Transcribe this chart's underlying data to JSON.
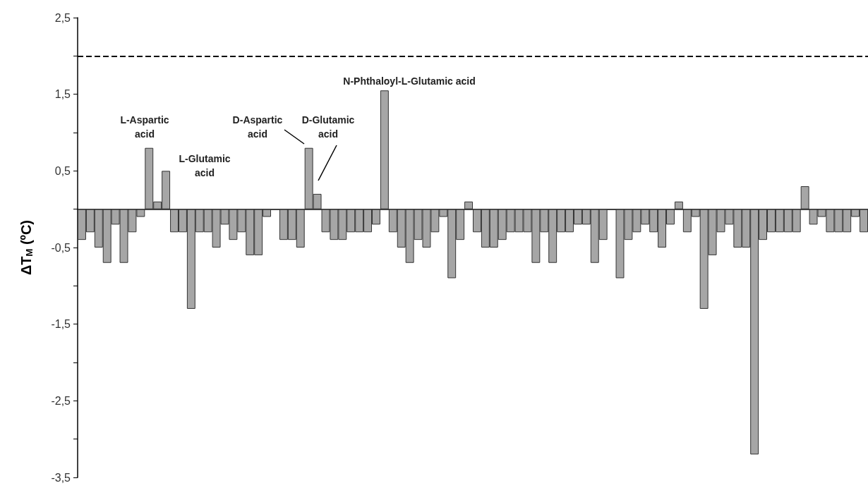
{
  "chart_data": {
    "type": "bar",
    "categories": [
      null,
      null,
      null,
      null,
      null,
      null,
      null,
      null,
      null,
      null,
      null,
      null,
      null,
      null,
      null,
      null,
      null,
      null,
      null,
      null,
      null,
      null,
      null,
      null,
      null,
      null,
      null,
      null,
      null,
      null,
      null,
      null,
      null,
      null,
      null,
      null,
      null,
      null,
      null,
      null,
      null,
      null,
      null,
      null,
      null,
      null,
      null,
      null,
      null,
      null,
      null,
      null,
      null,
      null,
      null,
      null,
      null,
      null,
      null,
      null,
      null,
      null,
      null,
      null,
      null,
      null,
      null,
      null,
      null,
      null,
      null,
      null,
      null,
      null,
      null,
      null,
      null,
      null,
      null,
      null,
      null,
      null,
      null,
      null,
      null,
      null,
      null,
      null,
      null,
      null,
      null,
      null,
      null,
      null
    ],
    "values": [
      -0.4,
      -0.3,
      -0.5,
      -0.7,
      -0.2,
      -0.7,
      -0.3,
      -0.1,
      0.8,
      0.1,
      0.5,
      -0.3,
      -0.3,
      -1.3,
      -0.3,
      -0.3,
      -0.5,
      -0.2,
      -0.4,
      -0.3,
      -0.6,
      -0.6,
      -0.1,
      null,
      -0.4,
      -0.4,
      -0.5,
      0.8,
      0.2,
      -0.3,
      -0.4,
      -0.4,
      -0.3,
      -0.3,
      -0.3,
      -0.2,
      1.55,
      -0.3,
      -0.5,
      -0.7,
      -0.4,
      -0.5,
      -0.3,
      -0.1,
      -0.9,
      -0.4,
      0.1,
      -0.3,
      -0.5,
      -0.5,
      -0.4,
      -0.3,
      -0.3,
      -0.3,
      -0.7,
      -0.3,
      -0.7,
      -0.3,
      -0.3,
      -0.2,
      -0.2,
      -0.7,
      -0.4,
      null,
      -0.9,
      -0.4,
      -0.3,
      -0.2,
      -0.3,
      -0.5,
      -0.2,
      0.1,
      -0.3,
      -0.1,
      -1.3,
      -0.6,
      -0.3,
      -0.2,
      -0.5,
      -0.5,
      -3.2,
      -0.4,
      -0.3,
      -0.3,
      -0.3,
      -0.3,
      0.3,
      -0.2,
      -0.1,
      -0.3,
      -0.3,
      -0.3,
      -0.1,
      -0.3
    ],
    "color": "#a6a6a6",
    "ylabel": "ΔT$_{M}$ (ºC)",
    "ylim": [
      -3.5,
      2.5
    ],
    "yticks": [
      {
        "value": 2.5,
        "label": "2,5"
      },
      {
        "value": 2,
        "label": null
      },
      {
        "value": 1.5,
        "label": "1,5"
      },
      {
        "value": 1,
        "label": null
      },
      {
        "value": 0.5,
        "label": "0,5"
      },
      {
        "value": 0,
        "label": null
      },
      {
        "value": -0.5,
        "label": "-0,5"
      },
      {
        "value": -1,
        "label": null
      },
      {
        "value": -1.5,
        "label": "-1,5"
      },
      {
        "value": -2,
        "label": null
      },
      {
        "value": -2.5,
        "label": "-2,5"
      },
      {
        "value": -3,
        "label": null
      },
      {
        "value": -3.5,
        "label": "-3,5"
      }
    ],
    "ref_lines": [
      {
        "axis": "y",
        "value": 2,
        "color": "#000000",
        "line_style": "dashed"
      }
    ],
    "annotations": [
      "L-Aspartic\nacid",
      "L-Glutamic\nacid",
      "D-Aspartic\nacid",
      "D-Glutamic\nacid",
      "N-Phthaloyl-L-Glutamic acid"
    ],
    "tick_labels": "y",
    "grid": false
  }
}
